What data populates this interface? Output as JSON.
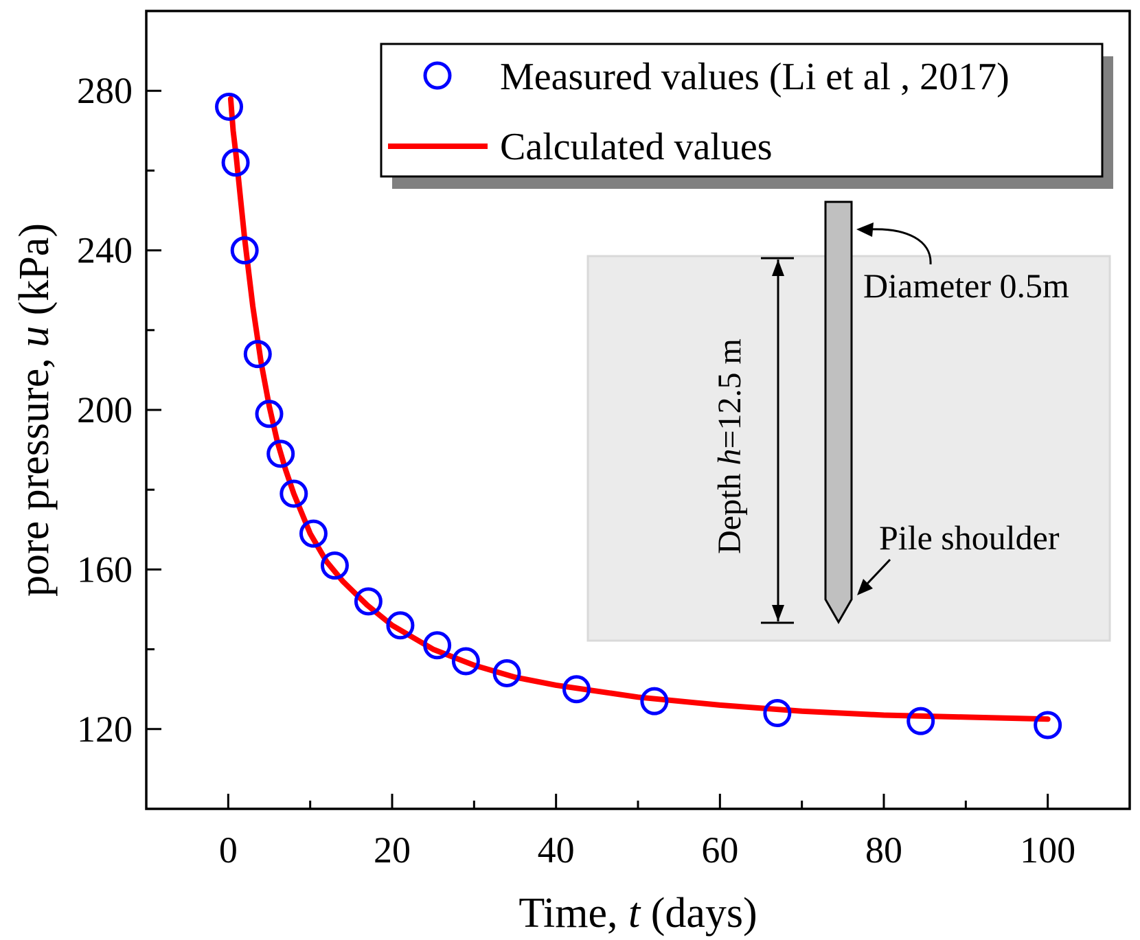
{
  "chart_data": {
    "type": "scatter",
    "title": "",
    "xlabel_prefix": "Time, ",
    "xlabel_var": "t",
    "xlabel_suffix": " (days)",
    "ylabel_prefix": "pore pressure, ",
    "ylabel_var": "u",
    "ylabel_suffix": " (kPa)",
    "xlim": [
      -10,
      110
    ],
    "ylim": [
      100,
      300
    ],
    "x_ticks": [
      0,
      20,
      40,
      60,
      80,
      100
    ],
    "x_minor_ticks": [
      10,
      30,
      50,
      70,
      90
    ],
    "y_ticks": [
      120,
      160,
      200,
      240,
      280
    ],
    "y_minor_ticks": [
      140,
      180,
      220,
      260
    ],
    "grid": false,
    "legend_position": "top-right",
    "series": [
      {
        "name": "Measured values (Li et al , 2017)",
        "kind": "markers",
        "marker": "open-circle",
        "color": "#0000ff",
        "x": [
          0.1,
          0.9,
          2.0,
          3.6,
          5.0,
          6.4,
          8.0,
          10.4,
          13.0,
          17.1,
          21.0,
          25.5,
          29.0,
          34.0,
          42.5,
          52.0,
          67.0,
          84.5,
          100.0
        ],
        "y": [
          276,
          262,
          240,
          214,
          199,
          189,
          179,
          169,
          161,
          152,
          146,
          141,
          137,
          134,
          130,
          127,
          124,
          122,
          121
        ]
      },
      {
        "name": "Calculated values",
        "kind": "line",
        "color": "#ff0000",
        "x": [
          0.3,
          0.6,
          1.0,
          1.5,
          2.0,
          3.0,
          4.0,
          5.0,
          6.0,
          7.0,
          8.0,
          10.0,
          12.0,
          14.0,
          17.0,
          20.0,
          25.0,
          30.0,
          35.0,
          40.0,
          50.0,
          60.0,
          70.0,
          80.0,
          90.0,
          100.0
        ],
        "y": [
          278,
          270,
          263,
          253,
          243,
          226,
          212,
          201,
          192,
          185,
          179,
          169,
          162,
          157,
          151,
          146,
          140,
          136,
          133,
          131,
          128,
          126,
          124.5,
          123.5,
          123,
          122.5
        ]
      }
    ]
  },
  "inset": {
    "depth_prefix": "Depth ",
    "depth_var": "h",
    "depth_suffix": "=12.5 m",
    "diameter_label": "Diameter 0.5m",
    "shoulder_label": "Pile shoulder"
  },
  "colors": {
    "soil": "#ebebeb",
    "soil_border": "#d9d9d9",
    "pile": "#c0c0c0",
    "legend_shadow": "#808080"
  }
}
